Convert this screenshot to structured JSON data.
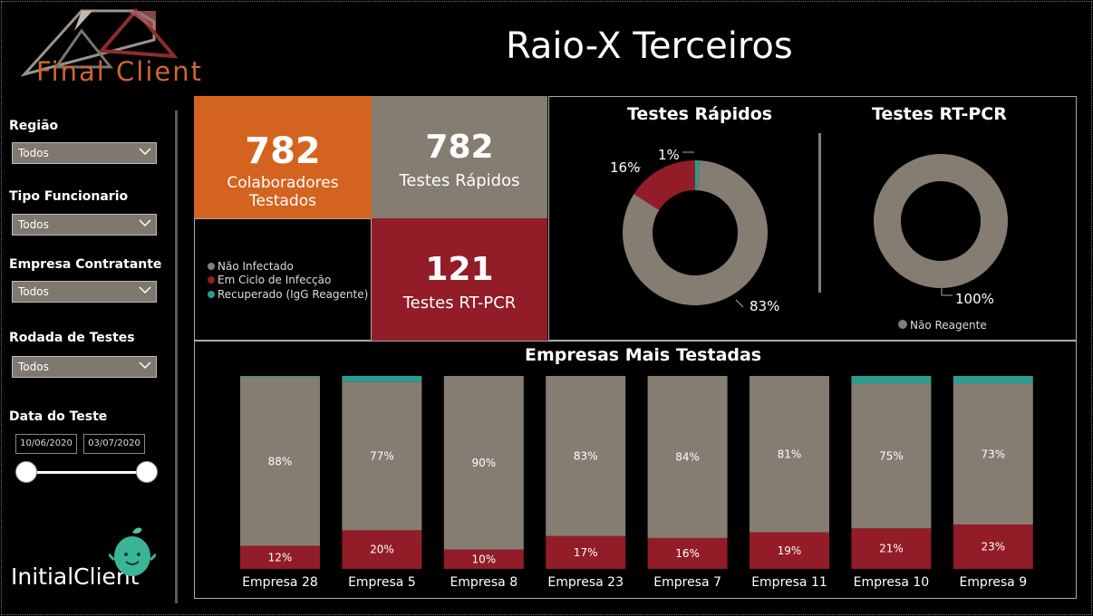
{
  "header": {
    "title": "Raio-X Terceiros",
    "logo_text": "Final Client"
  },
  "filters": [
    {
      "label": "Região",
      "value": "Todos"
    },
    {
      "label": "Tipo Funcionario",
      "value": "Todos"
    },
    {
      "label": "Empresa Contratante",
      "value": "Todos"
    },
    {
      "label": "Rodada de Testes",
      "value": "Todos"
    }
  ],
  "date_filter": {
    "label": "Data do Teste",
    "start": "10/06/2020",
    "end": "03/07/2020"
  },
  "footer_logo": {
    "text": "InitialClient"
  },
  "cards": {
    "colaboradores": {
      "value": "782",
      "label": "Colaboradores Testados",
      "color": "#d4631f"
    },
    "rapidos": {
      "value": "782",
      "label": "Testes Rápidos",
      "color": "#857c72"
    },
    "rtpcr": {
      "value": "121",
      "label": "Testes RT-PCR",
      "color": "#921c27"
    }
  },
  "legend": {
    "items": [
      {
        "label": "Não Infectado",
        "color": "#857c72"
      },
      {
        "label": "Em Ciclo de Infecção",
        "color": "#921c27"
      },
      {
        "label": "Recuperado (IgG Reagente)",
        "color": "#2a9d8f"
      }
    ]
  },
  "colors": {
    "gray": "#857c72",
    "red": "#921c27",
    "teal": "#2a9d8f"
  },
  "chart_data": [
    {
      "type": "pie",
      "title": "Testes Rápidos",
      "categories": [
        "Não Infectado",
        "Em Ciclo de Infecção",
        "Recuperado (IgG Reagente)"
      ],
      "values": [
        83,
        16,
        1
      ],
      "labels": [
        "83%",
        "16%",
        "1%"
      ]
    },
    {
      "type": "pie",
      "title": "Testes RT-PCR",
      "categories": [
        "Não Reagente"
      ],
      "values": [
        100
      ],
      "labels": [
        "100%"
      ],
      "legend": [
        "Não Reagente"
      ]
    },
    {
      "type": "bar",
      "stacked": true,
      "title": "Empresas Mais Testadas",
      "categories": [
        "Empresa 28",
        "Empresa 5",
        "Empresa 8",
        "Empresa 23",
        "Empresa 7",
        "Empresa 11",
        "Empresa 10",
        "Empresa 9"
      ],
      "series": [
        {
          "name": "Em Ciclo de Infecção",
          "values": [
            12,
            20,
            10,
            17,
            16,
            19,
            21,
            23
          ],
          "labels": [
            "12%",
            "20%",
            "10%",
            "17%",
            "16%",
            "19%",
            "21%",
            "23%"
          ]
        },
        {
          "name": "Não Infectado",
          "values": [
            88,
            77,
            90,
            83,
            84,
            81,
            75,
            73
          ],
          "labels": [
            "88%",
            "77%",
            "90%",
            "83%",
            "84%",
            "81%",
            "75%",
            "73%"
          ]
        },
        {
          "name": "Recuperado (IgG Reagente)",
          "values": [
            0.5,
            3,
            0,
            0,
            0,
            0,
            4,
            4
          ]
        }
      ],
      "ylim": [
        0,
        100
      ]
    }
  ]
}
